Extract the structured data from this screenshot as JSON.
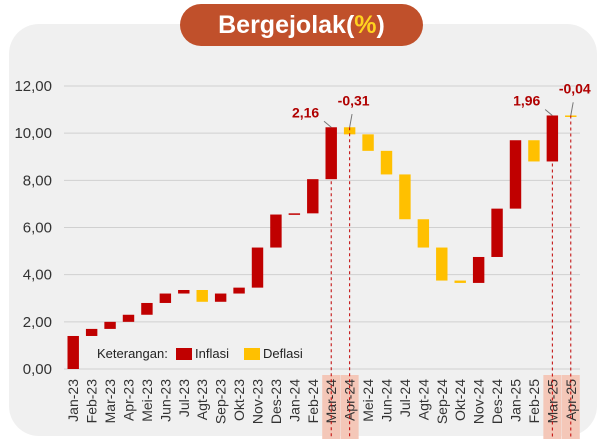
{
  "title": {
    "main": "Bergejolak",
    "open": " (",
    "pct": "%",
    "close": ")"
  },
  "colors": {
    "inflasi": "#c00000",
    "deflasi": "#ffc000",
    "highlight": "#f4c7b8",
    "pill": "#c0502b",
    "label": "#b00000"
  },
  "legend": {
    "prefix": "Keterangan:",
    "inflasi": "Inflasi",
    "deflasi": "Deflasi"
  },
  "chart_data": {
    "type": "bar",
    "subtype": "waterfall",
    "ylim": [
      0,
      12
    ],
    "yticks": [
      "0,00",
      "2,00",
      "4,00",
      "6,00",
      "8,00",
      "10,00",
      "12,00"
    ],
    "grid": true,
    "categories": [
      "Jan-23",
      "Feb-23",
      "Mar-23",
      "Apr-23",
      "Mei-23",
      "Jun-23",
      "Jul-23",
      "Agt-23",
      "Sep-23",
      "Okt-23",
      "Nov-23",
      "Des-23",
      "Jan-24",
      "Feb-24",
      "Mar-24",
      "Apr-24",
      "Mei-24",
      "Jun-24",
      "Jul-24",
      "Agt-24",
      "Sep-24",
      "Okt-24",
      "Nov-24",
      "Des-24",
      "Jan-25",
      "Feb-25",
      "Mar-25",
      "Apr-25"
    ],
    "series": [
      {
        "start": [
          0.0,
          1.4,
          1.7,
          2.0,
          2.3,
          2.8,
          3.2,
          3.35,
          2.85,
          3.2,
          3.45,
          5.15,
          6.55,
          6.6,
          8.05,
          10.25,
          9.95,
          9.25,
          8.25,
          6.35,
          5.15,
          3.75,
          3.65,
          4.75,
          6.8,
          9.7,
          8.8,
          10.75
        ],
        "end": [
          1.4,
          1.7,
          2.0,
          2.3,
          2.8,
          3.2,
          3.35,
          2.85,
          3.2,
          3.45,
          5.15,
          6.55,
          6.6,
          8.05,
          10.25,
          9.95,
          9.25,
          8.25,
          6.35,
          5.15,
          3.75,
          3.65,
          4.75,
          6.8,
          9.7,
          8.8,
          10.75,
          10.7
        ]
      }
    ],
    "highlighted": [
      "Mar-24",
      "Apr-24",
      "Mar-25",
      "Apr-25"
    ],
    "annotations": [
      {
        "category": "Mar-24",
        "text": "2,16"
      },
      {
        "category": "Apr-24",
        "text": "-0,31"
      },
      {
        "category": "Mar-25",
        "text": "1,96"
      },
      {
        "category": "Apr-25",
        "text": "-0,04"
      }
    ]
  }
}
